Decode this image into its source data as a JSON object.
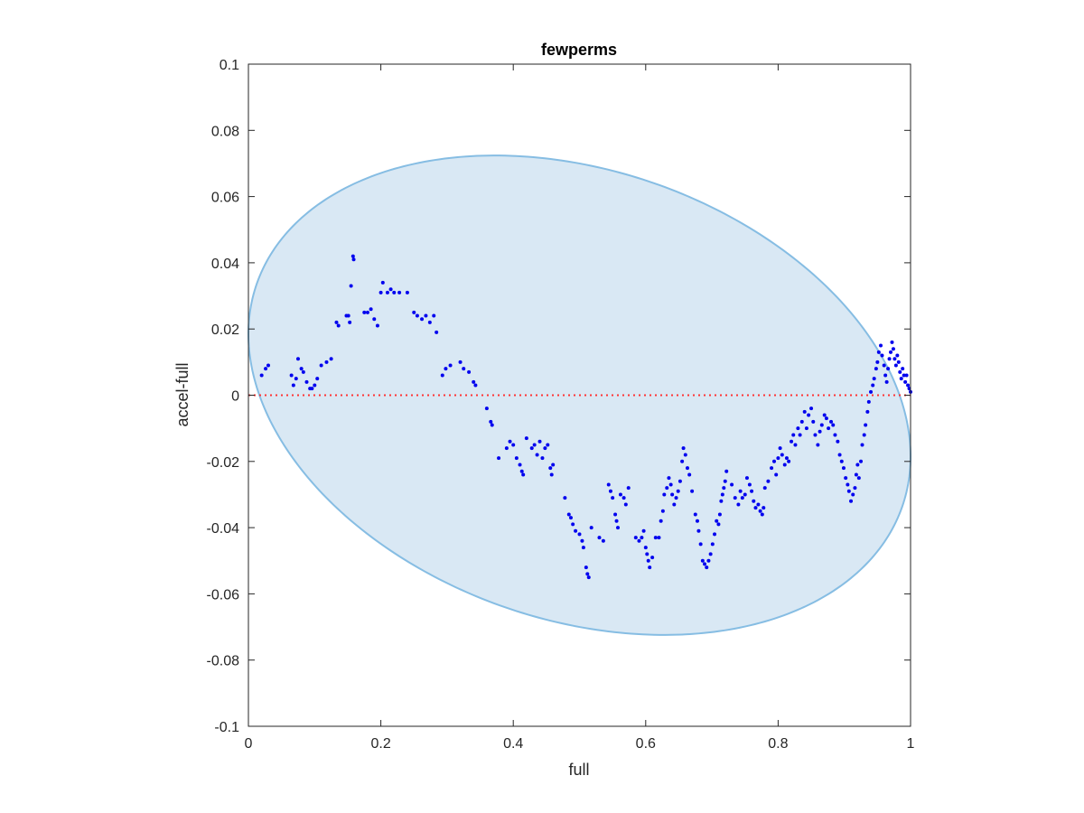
{
  "chart_data": {
    "type": "scatter",
    "title": "fewperms",
    "xlabel": "full",
    "ylabel": "accel-full",
    "xlim": [
      0,
      1
    ],
    "ylim": [
      -0.1,
      0.1
    ],
    "xticks": [
      "0",
      "0.2",
      "0.4",
      "0.6",
      "0.8",
      "1"
    ],
    "yticks": [
      "-0.1",
      "-0.08",
      "-0.06",
      "-0.04",
      "-0.02",
      "0",
      "0.02",
      "0.04",
      "0.06",
      "0.08",
      "0.1"
    ],
    "grid": false,
    "colors": {
      "points": "#0000ee",
      "ellipse_fill": "#d9e8f4",
      "ellipse_edge": "#86bde3",
      "zero_line": "#ff3333",
      "axes": "#262626"
    },
    "reference_line": {
      "y": 0,
      "style": "dotted"
    },
    "ellipse": {
      "center": [
        0.5,
        0
      ],
      "x_radius": 0.5,
      "y_radius": 0.07,
      "tilt_slope": 0.037
    },
    "series": [
      {
        "points": [
          [
            0.02,
            0.006
          ],
          [
            0.026,
            0.008
          ],
          [
            0.03,
            0.009
          ],
          [
            0.065,
            0.006
          ],
          [
            0.068,
            0.003
          ],
          [
            0.072,
            0.005
          ],
          [
            0.075,
            0.011
          ],
          [
            0.08,
            0.008
          ],
          [
            0.083,
            0.007
          ],
          [
            0.088,
            0.004
          ],
          [
            0.093,
            0.002
          ],
          [
            0.096,
            0.002
          ],
          [
            0.1,
            0.003
          ],
          [
            0.104,
            0.005
          ],
          [
            0.11,
            0.009
          ],
          [
            0.118,
            0.01
          ],
          [
            0.125,
            0.011
          ],
          [
            0.133,
            0.022
          ],
          [
            0.136,
            0.021
          ],
          [
            0.148,
            0.024
          ],
          [
            0.151,
            0.024
          ],
          [
            0.153,
            0.022
          ],
          [
            0.155,
            0.033
          ],
          [
            0.158,
            0.042
          ],
          [
            0.159,
            0.041
          ],
          [
            0.175,
            0.025
          ],
          [
            0.18,
            0.025
          ],
          [
            0.185,
            0.026
          ],
          [
            0.19,
            0.023
          ],
          [
            0.195,
            0.021
          ],
          [
            0.2,
            0.031
          ],
          [
            0.203,
            0.034
          ],
          [
            0.21,
            0.031
          ],
          [
            0.215,
            0.032
          ],
          [
            0.22,
            0.031
          ],
          [
            0.228,
            0.031
          ],
          [
            0.24,
            0.031
          ],
          [
            0.25,
            0.025
          ],
          [
            0.255,
            0.024
          ],
          [
            0.262,
            0.023
          ],
          [
            0.268,
            0.024
          ],
          [
            0.274,
            0.022
          ],
          [
            0.28,
            0.024
          ],
          [
            0.284,
            0.019
          ],
          [
            0.293,
            0.006
          ],
          [
            0.298,
            0.008
          ],
          [
            0.305,
            0.009
          ],
          [
            0.32,
            0.01
          ],
          [
            0.325,
            0.008
          ],
          [
            0.333,
            0.007
          ],
          [
            0.34,
            0.004
          ],
          [
            0.343,
            0.003
          ],
          [
            0.36,
            -0.004
          ],
          [
            0.366,
            -0.008
          ],
          [
            0.368,
            -0.009
          ],
          [
            0.378,
            -0.019
          ],
          [
            0.39,
            -0.016
          ],
          [
            0.395,
            -0.014
          ],
          [
            0.4,
            -0.015
          ],
          [
            0.405,
            -0.019
          ],
          [
            0.41,
            -0.021
          ],
          [
            0.413,
            -0.023
          ],
          [
            0.415,
            -0.024
          ],
          [
            0.42,
            -0.013
          ],
          [
            0.428,
            -0.016
          ],
          [
            0.432,
            -0.015
          ],
          [
            0.436,
            -0.018
          ],
          [
            0.44,
            -0.014
          ],
          [
            0.444,
            -0.019
          ],
          [
            0.448,
            -0.016
          ],
          [
            0.452,
            -0.015
          ],
          [
            0.456,
            -0.022
          ],
          [
            0.458,
            -0.024
          ],
          [
            0.46,
            -0.021
          ],
          [
            0.478,
            -0.031
          ],
          [
            0.484,
            -0.036
          ],
          [
            0.487,
            -0.037
          ],
          [
            0.49,
            -0.039
          ],
          [
            0.494,
            -0.041
          ],
          [
            0.5,
            -0.042
          ],
          [
            0.504,
            -0.044
          ],
          [
            0.506,
            -0.046
          ],
          [
            0.51,
            -0.052
          ],
          [
            0.512,
            -0.054
          ],
          [
            0.514,
            -0.055
          ],
          [
            0.518,
            -0.04
          ],
          [
            0.53,
            -0.043
          ],
          [
            0.536,
            -0.044
          ],
          [
            0.544,
            -0.027
          ],
          [
            0.547,
            -0.029
          ],
          [
            0.55,
            -0.031
          ],
          [
            0.554,
            -0.036
          ],
          [
            0.556,
            -0.038
          ],
          [
            0.558,
            -0.04
          ],
          [
            0.562,
            -0.03
          ],
          [
            0.567,
            -0.031
          ],
          [
            0.57,
            -0.033
          ],
          [
            0.574,
            -0.028
          ],
          [
            0.585,
            -0.043
          ],
          [
            0.59,
            -0.044
          ],
          [
            0.594,
            -0.043
          ],
          [
            0.597,
            -0.041
          ],
          [
            0.6,
            -0.046
          ],
          [
            0.602,
            -0.048
          ],
          [
            0.604,
            -0.05
          ],
          [
            0.606,
            -0.052
          ],
          [
            0.61,
            -0.049
          ],
          [
            0.615,
            -0.043
          ],
          [
            0.62,
            -0.043
          ],
          [
            0.623,
            -0.038
          ],
          [
            0.626,
            -0.035
          ],
          [
            0.628,
            -0.03
          ],
          [
            0.632,
            -0.028
          ],
          [
            0.635,
            -0.025
          ],
          [
            0.638,
            -0.027
          ],
          [
            0.64,
            -0.03
          ],
          [
            0.643,
            -0.033
          ],
          [
            0.646,
            -0.031
          ],
          [
            0.649,
            -0.029
          ],
          [
            0.652,
            -0.026
          ],
          [
            0.655,
            -0.02
          ],
          [
            0.657,
            -0.016
          ],
          [
            0.66,
            -0.018
          ],
          [
            0.663,
            -0.022
          ],
          [
            0.666,
            -0.024
          ],
          [
            0.67,
            -0.029
          ],
          [
            0.675,
            -0.036
          ],
          [
            0.678,
            -0.038
          ],
          [
            0.68,
            -0.041
          ],
          [
            0.683,
            -0.045
          ],
          [
            0.686,
            -0.05
          ],
          [
            0.689,
            -0.051
          ],
          [
            0.692,
            -0.052
          ],
          [
            0.695,
            -0.05
          ],
          [
            0.698,
            -0.048
          ],
          [
            0.701,
            -0.045
          ],
          [
            0.704,
            -0.042
          ],
          [
            0.707,
            -0.038
          ],
          [
            0.71,
            -0.039
          ],
          [
            0.712,
            -0.036
          ],
          [
            0.714,
            -0.032
          ],
          [
            0.716,
            -0.03
          ],
          [
            0.718,
            -0.028
          ],
          [
            0.72,
            -0.026
          ],
          [
            0.722,
            -0.023
          ],
          [
            0.73,
            -0.027
          ],
          [
            0.735,
            -0.031
          ],
          [
            0.74,
            -0.033
          ],
          [
            0.743,
            -0.029
          ],
          [
            0.746,
            -0.031
          ],
          [
            0.75,
            -0.03
          ],
          [
            0.753,
            -0.025
          ],
          [
            0.757,
            -0.027
          ],
          [
            0.76,
            -0.029
          ],
          [
            0.763,
            -0.032
          ],
          [
            0.766,
            -0.034
          ],
          [
            0.77,
            -0.033
          ],
          [
            0.773,
            -0.035
          ],
          [
            0.776,
            -0.036
          ],
          [
            0.778,
            -0.034
          ],
          [
            0.78,
            -0.028
          ],
          [
            0.785,
            -0.026
          ],
          [
            0.79,
            -0.022
          ],
          [
            0.794,
            -0.02
          ],
          [
            0.797,
            -0.024
          ],
          [
            0.8,
            -0.019
          ],
          [
            0.803,
            -0.016
          ],
          [
            0.806,
            -0.018
          ],
          [
            0.81,
            -0.021
          ],
          [
            0.813,
            -0.019
          ],
          [
            0.816,
            -0.02
          ],
          [
            0.82,
            -0.014
          ],
          [
            0.823,
            -0.012
          ],
          [
            0.826,
            -0.015
          ],
          [
            0.83,
            -0.01
          ],
          [
            0.833,
            -0.012
          ],
          [
            0.836,
            -0.008
          ],
          [
            0.84,
            -0.005
          ],
          [
            0.843,
            -0.01
          ],
          [
            0.846,
            -0.006
          ],
          [
            0.85,
            -0.004
          ],
          [
            0.853,
            -0.008
          ],
          [
            0.856,
            -0.012
          ],
          [
            0.86,
            -0.015
          ],
          [
            0.863,
            -0.011
          ],
          [
            0.866,
            -0.009
          ],
          [
            0.87,
            -0.006
          ],
          [
            0.873,
            -0.007
          ],
          [
            0.876,
            -0.01
          ],
          [
            0.88,
            -0.008
          ],
          [
            0.883,
            -0.009
          ],
          [
            0.886,
            -0.012
          ],
          [
            0.89,
            -0.014
          ],
          [
            0.893,
            -0.018
          ],
          [
            0.896,
            -0.02
          ],
          [
            0.899,
            -0.022
          ],
          [
            0.902,
            -0.025
          ],
          [
            0.905,
            -0.027
          ],
          [
            0.907,
            -0.029
          ],
          [
            0.91,
            -0.032
          ],
          [
            0.913,
            -0.03
          ],
          [
            0.916,
            -0.028
          ],
          [
            0.918,
            -0.024
          ],
          [
            0.92,
            -0.021
          ],
          [
            0.922,
            -0.025
          ],
          [
            0.925,
            -0.02
          ],
          [
            0.927,
            -0.015
          ],
          [
            0.93,
            -0.012
          ],
          [
            0.932,
            -0.009
          ],
          [
            0.935,
            -0.005
          ],
          [
            0.937,
            -0.002
          ],
          [
            0.94,
            0.001
          ],
          [
            0.943,
            0.003
          ],
          [
            0.945,
            0.005
          ],
          [
            0.948,
            0.008
          ],
          [
            0.95,
            0.01
          ],
          [
            0.952,
            0.013
          ],
          [
            0.955,
            0.015
          ],
          [
            0.957,
            0.012
          ],
          [
            0.96,
            0.009
          ],
          [
            0.962,
            0.006
          ],
          [
            0.964,
            0.004
          ],
          [
            0.966,
            0.008
          ],
          [
            0.968,
            0.011
          ],
          [
            0.97,
            0.013
          ],
          [
            0.972,
            0.016
          ],
          [
            0.974,
            0.014
          ],
          [
            0.976,
            0.011
          ],
          [
            0.978,
            0.009
          ],
          [
            0.98,
            0.012
          ],
          [
            0.982,
            0.01
          ],
          [
            0.984,
            0.007
          ],
          [
            0.986,
            0.005
          ],
          [
            0.988,
            0.008
          ],
          [
            0.99,
            0.006
          ],
          [
            0.992,
            0.004
          ],
          [
            0.994,
            0.006
          ],
          [
            0.996,
            0.003
          ],
          [
            0.998,
            0.002
          ],
          [
            1.0,
            0.001
          ]
        ]
      }
    ]
  }
}
